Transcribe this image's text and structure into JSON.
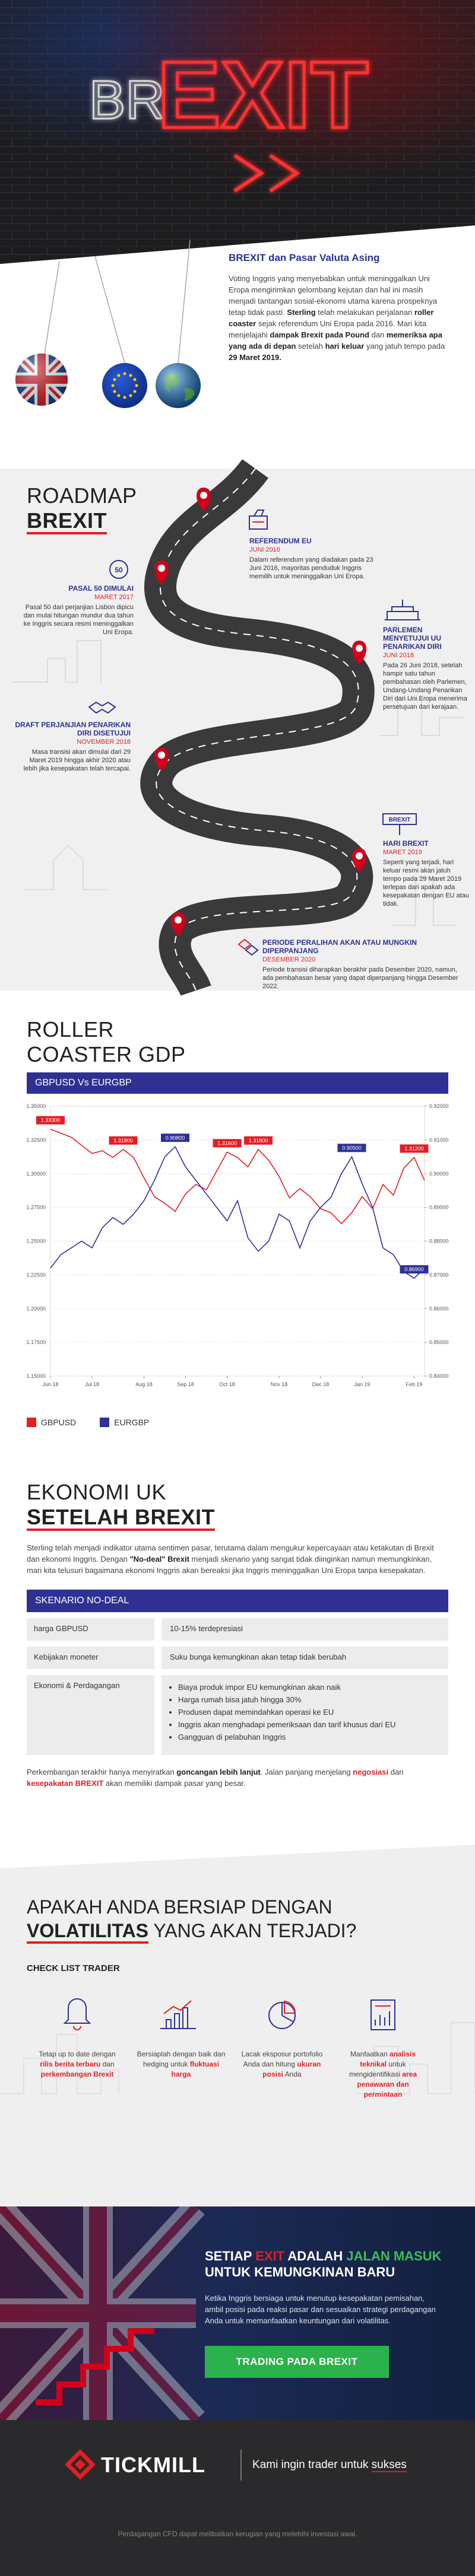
{
  "hero": {
    "prefix": "BR",
    "word": "EXIT"
  },
  "intro": {
    "title": "BREXIT dan Pasar Valuta Asing",
    "text": [
      "Voting Inggris yang menyebabkan untuk meninggalkan Uni Eropa mengirimkan gelombang kejutan dan hal ini masih menjadi tantangan sosial-ekonomi utama karena prospeknya tetap tidak pasti. ",
      "Sterling",
      " telah melakukan perjalanan ",
      "roller coaster",
      " sejak referendum Uni Eropa pada 2016. Mari kita menjelajahi ",
      "dampak Brexit pada Pound",
      " dan ",
      "memeriksa apa yang ada di depan",
      " setelah ",
      "hari keluar",
      " yang jatuh tempo pada ",
      "29 Maret 2019."
    ]
  },
  "roadmap": {
    "title": [
      "ROADMAP",
      "BREXIT"
    ],
    "milestones": [
      {
        "title": "REFERENDUM EU",
        "date": "JUNI 2016",
        "text": "Dalam referendum yang diadakan pada 23 Juni 2016, mayoritas penduduk Inggris memilih untuk meninggalkan Uni Eropa."
      },
      {
        "title": "PASAL 50 DIMULAI",
        "date": "MARET 2017",
        "text": "Pasal 50 dari perjanjian Lisbon dipicu dan mulai hitungan mundur dua tahun ke Inggris secara resmi meninggalkan Uni Eropa."
      },
      {
        "title": "PARLEMEN MENYETUJUI UU PENARIKAN DIRI",
        "date": "JUNI 2018",
        "text": "Pada 26 Juni 2018, setelah hampir satu tahun pembahasan oleh Parlemen, Undang-Undang Penarikan Diri dari Uni Eropa menerima persetujuan dari kerajaan."
      },
      {
        "title": "DRAFT PERJANJIAN PENARIKAN DIRI DISETUJUI",
        "date": "NOVEMBER 2018",
        "text": "Masa transisi akan dimulai dari 29 Maret 2019 hingga akhir 2020 atau lebih jika kesepakatan telah tercapai."
      },
      {
        "title": "HARI BREXIT",
        "date": "MARET 2019",
        "text": "Seperti yang terjadi, hari keluar resmi akan jatuh tempo pada 29 Maret 2019 terlepas dari apakah ada kesepakatan dengan EU atau tidak."
      },
      {
        "title": "PERIODE PERALIHAN AKAN ATAU MUNGKIN DIPERPANJANG",
        "date": "DESEMBER 2020",
        "text": "Periode transisi diharapkan berakhir pada Desember 2020, namun, ada pembahasan besar yang dapat diperpanjang hingga Desember 2022."
      }
    ]
  },
  "chart_section": {
    "title": [
      "ROLLER",
      "COASTER GDP"
    ]
  },
  "chart_data": {
    "type": "line",
    "title": "GBPUSD Vs EURGBP",
    "categories": [
      "Jun 18",
      null,
      null,
      null,
      "Jul 18",
      null,
      null,
      null,
      null,
      "Aug 18",
      null,
      null,
      null,
      "Sep 18",
      null,
      null,
      null,
      "Oct 18",
      null,
      null,
      null,
      null,
      "Nov 18",
      null,
      null,
      null,
      "Dec 18",
      null,
      null,
      null,
      "Jan 19",
      null,
      null,
      null,
      null,
      "Feb 19",
      null
    ],
    "series": [
      {
        "name": "GBPUSD",
        "color": "#e31e24",
        "values": [
          1.333,
          1.33,
          1.327,
          1.321,
          1.315,
          1.317,
          1.312,
          1.318,
          1.312,
          1.297,
          1.283,
          1.278,
          1.272,
          1.285,
          1.292,
          1.288,
          1.302,
          1.316,
          1.312,
          1.305,
          1.318,
          1.31,
          1.298,
          1.282,
          1.289,
          1.283,
          1.274,
          1.271,
          1.263,
          1.271,
          1.283,
          1.274,
          1.292,
          1.284,
          1.304,
          1.312,
          1.295
        ],
        "value_labels": [
          "1.33300",
          null,
          null,
          null,
          null,
          null,
          null,
          "1.31800",
          null,
          null,
          null,
          null,
          null,
          null,
          null,
          null,
          null,
          "1.31600",
          null,
          null,
          "1.31800",
          null,
          null,
          null,
          null,
          null,
          null,
          null,
          null,
          null,
          null,
          null,
          null,
          null,
          null,
          "1.31200",
          null
        ]
      },
      {
        "name": "EURGBP",
        "color": "#2e3192",
        "axis": "y2",
        "values": [
          0.872,
          0.876,
          0.878,
          0.88,
          0.878,
          0.884,
          0.887,
          0.885,
          0.888,
          0.892,
          0.898,
          0.905,
          0.908,
          0.902,
          0.898,
          0.894,
          0.89,
          0.886,
          0.892,
          0.881,
          0.877,
          0.88,
          0.888,
          0.886,
          0.878,
          0.886,
          0.89,
          0.893,
          0.9,
          0.905,
          0.897,
          0.89,
          0.878,
          0.876,
          0.871,
          0.869,
          0.872
        ],
        "value_labels": [
          null,
          null,
          null,
          null,
          null,
          null,
          null,
          null,
          null,
          null,
          null,
          null,
          "0.90800",
          null,
          null,
          null,
          null,
          null,
          null,
          null,
          null,
          null,
          null,
          null,
          null,
          null,
          null,
          null,
          null,
          "0.90500",
          null,
          null,
          null,
          null,
          null,
          "0.86900",
          null
        ]
      }
    ],
    "ylim": [
      1.15,
      1.35
    ],
    "yticks": [
      {
        "value": 1.35,
        "label": "1.35000"
      },
      {
        "value": 1.325,
        "label": "1.32500"
      },
      {
        "value": 1.3,
        "label": "1.30000"
      },
      {
        "value": 1.275,
        "label": "1.27500"
      },
      {
        "value": 1.25,
        "label": "1.25000"
      },
      {
        "value": 1.225,
        "label": "1.22500"
      },
      {
        "value": 1.2,
        "label": "1.20000"
      },
      {
        "value": 1.175,
        "label": "1.17500"
      },
      {
        "value": 1.15,
        "label": "1.15000"
      }
    ],
    "y2lim": [
      0.84,
      0.92
    ],
    "y2ticks": [
      {
        "value": 0.92,
        "label": "0.92000"
      },
      {
        "value": 0.91,
        "label": "0.91000"
      },
      {
        "value": 0.9,
        "label": "0.90000"
      },
      {
        "value": 0.89,
        "label": "0.89000"
      },
      {
        "value": 0.88,
        "label": "0.88000"
      },
      {
        "value": 0.87,
        "label": "0.87000"
      },
      {
        "value": 0.86,
        "label": "0.86000"
      },
      {
        "value": 0.85,
        "label": "0.85000"
      },
      {
        "value": 0.84,
        "label": "0.84000"
      }
    ],
    "grid": true
  },
  "economy": {
    "title": [
      "EKONOMI UK",
      "SETELAH BREXIT"
    ],
    "intro": [
      "Sterling telah menjadi indikator utama sentimen pasar, terutama dalam mengukur kepercayaan atau ketakutan di Brexit dan ekonomi Inggris. Dengan ",
      "\"No-deal\" Brexit",
      " menjadi skenario yang sangat tidak diinginkan namun memungkinkan, mari kita telusuri bagaimana ekonomi Inggris akan bereaksi jika Inggris meninggalkan Uni Eropa tanpa kesepakatan."
    ],
    "table": {
      "header": "SKENARIO NO-DEAL",
      "rows": [
        [
          "harga GBPUSD",
          "10-15% terdepresiasi"
        ],
        [
          "Kebijakan moneter",
          "Suku bunga kemungkinan akan tetap tidak berubah"
        ],
        [
          "Ekonomi & Perdagangan",
          [
            "Biaya produk impor EU kemungkinan akan naik",
            "Harga rumah bisa jatuh hingga 30%",
            "Produsen dapat memindahkan operasi ke EU",
            "Inggris akan menghadapi pemeriksaan dan tarif khusus dari EU",
            "Gangguan di pelabuhan Inggris"
          ]
        ]
      ]
    },
    "outro": [
      "Perkembangan terakhir hanya menyiratkan ",
      "goncangan lebih lanjut",
      ". Jalan panjang menjelang ",
      "negosiasi",
      " dari ",
      "kesepakatan BREXIT",
      " akan memiliki dampak pasar yang besar."
    ]
  },
  "checklist": {
    "title": [
      "APAKAH ANDA BERSIAP DENGAN",
      "VOLATILITAS",
      " YANG AKAN TERJADI?"
    ],
    "subtitle": "CHECK LIST TRADER",
    "items": [
      [
        "Tetap up to date dengan ",
        "rilis berita terbaru",
        " dan ",
        "perkembangan Brexit"
      ],
      [
        "Bersiaplah dengan baik dan hedging untuk ",
        "fluktuasi harga"
      ],
      [
        "Lacak eksposur portofolio Anda dan hitung ",
        "ukuran posisi",
        " Anda"
      ],
      [
        "Manfaatkan ",
        "analisis teknikal",
        " untuk mengidentifikasi ",
        "area penawaran dan permintaan"
      ]
    ]
  },
  "banner": {
    "title": [
      "SETIAP ",
      "EXIT",
      " ADALAH ",
      "JALAN MASUK",
      " UNTUK KEMUNGKINAN BARU"
    ],
    "text": "Ketika Inggris bersiaga untuk menutup kesepakatan pemisahan, ambil posisi pada reaksi pasar dan sesuaikan strategi perdagangan Anda untuk memanfaatkan keuntungan dari volatilitas.",
    "button": "TRADING PADA BREXIT"
  },
  "footer": {
    "brand": "TICKMILL",
    "tagline": [
      "Kami ingin trader untuk ",
      "sukses"
    ],
    "disclaimer": "Perdagangan CFD dapat melibatkan kerugian yang melebihi investasi awal."
  }
}
